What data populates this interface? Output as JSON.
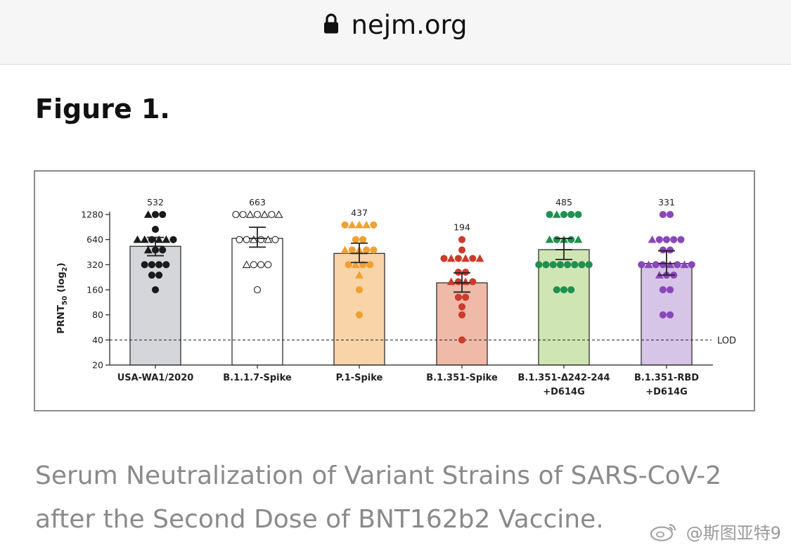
{
  "browser": {
    "url": "nejm.org",
    "lock_icon": "lock-icon"
  },
  "figure": {
    "heading": "Figure 1.",
    "caption_line1": "Serum Neutralization of Variant Strains of SARS-CoV-2",
    "caption_line2": "after the Second Dose of BNT162b2 Vaccine."
  },
  "watermark": {
    "text": "@斯图亚特9",
    "icon": "weibo-icon"
  },
  "chart_data": {
    "type": "bar",
    "ylabel_main": "PRNT",
    "ylabel_sub": "50",
    "ylabel_tail": " (log",
    "ylabel_sub2": "2",
    "ylabel_close": ")",
    "y_scale": "log2",
    "ylim": [
      20,
      1280
    ],
    "yticks": [
      20,
      40,
      80,
      160,
      320,
      640,
      1280
    ],
    "lod": {
      "value": 40,
      "label": "LOD"
    },
    "categories": [
      [
        "USA-WA1/2020"
      ],
      [
        "B.1.1.7-Spike"
      ],
      [
        "P.1-Spike"
      ],
      [
        "B.1.351-Spike"
      ],
      [
        "B.1.351-Δ242-244",
        "+D614G"
      ],
      [
        "B.1.351-RBD",
        "+D614G"
      ]
    ],
    "values": [
      532,
      663,
      437,
      194,
      485,
      331
    ],
    "value_labels": [
      "532",
      "663",
      "437",
      "194",
      "485",
      "331"
    ],
    "ci": [
      [
        410,
        680
      ],
      [
        520,
        900
      ],
      [
        340,
        580
      ],
      [
        150,
        255
      ],
      [
        370,
        660
      ],
      [
        240,
        470
      ]
    ],
    "colors": {
      "bar_fill": [
        "#d4d6da",
        "#ffffff",
        "#f8d4a8",
        "#efbaa8",
        "#cfe5b3",
        "#d6c5e6"
      ],
      "marker": [
        "#1a1a1a",
        "#1a1a1a",
        "#f0a033",
        "#cc3b2b",
        "#1f9050",
        "#8a47b8"
      ]
    },
    "points": [
      [
        {
          "v": 1280,
          "m": "tri"
        },
        {
          "v": 1280,
          "m": "dot"
        },
        {
          "v": 1280,
          "m": "dot"
        },
        {
          "v": 850,
          "m": "dot"
        },
        {
          "v": 640,
          "m": "tri"
        },
        {
          "v": 640,
          "m": "tri"
        },
        {
          "v": 640,
          "m": "dot"
        },
        {
          "v": 640,
          "m": "tri"
        },
        {
          "v": 640,
          "m": "tri"
        },
        {
          "v": 640,
          "m": "dot"
        },
        {
          "v": 480,
          "m": "tri"
        },
        {
          "v": 480,
          "m": "dot"
        },
        {
          "v": 480,
          "m": "dot"
        },
        {
          "v": 320,
          "m": "dot"
        },
        {
          "v": 320,
          "m": "dot"
        },
        {
          "v": 320,
          "m": "dot"
        },
        {
          "v": 320,
          "m": "dot"
        },
        {
          "v": 240,
          "m": "dot"
        },
        {
          "v": 240,
          "m": "dot"
        },
        {
          "v": 160,
          "m": "dot"
        }
      ],
      [
        {
          "v": 1280,
          "m": "dot"
        },
        {
          "v": 1280,
          "m": "dot"
        },
        {
          "v": 1280,
          "m": "tri"
        },
        {
          "v": 1280,
          "m": "dot"
        },
        {
          "v": 1280,
          "m": "tri"
        },
        {
          "v": 1280,
          "m": "dot"
        },
        {
          "v": 1280,
          "m": "tri"
        },
        {
          "v": 640,
          "m": "dot"
        },
        {
          "v": 640,
          "m": "dot"
        },
        {
          "v": 640,
          "m": "tri"
        },
        {
          "v": 640,
          "m": "dot"
        },
        {
          "v": 640,
          "m": "tri"
        },
        {
          "v": 640,
          "m": "dot"
        },
        {
          "v": 320,
          "m": "tri"
        },
        {
          "v": 320,
          "m": "dot"
        },
        {
          "v": 320,
          "m": "dot"
        },
        {
          "v": 320,
          "m": "dot"
        },
        {
          "v": 160,
          "m": "dot"
        }
      ],
      [
        {
          "v": 960,
          "m": "dot"
        },
        {
          "v": 960,
          "m": "tri"
        },
        {
          "v": 960,
          "m": "tri"
        },
        {
          "v": 960,
          "m": "tri"
        },
        {
          "v": 960,
          "m": "dot"
        },
        {
          "v": 640,
          "m": "dot"
        },
        {
          "v": 640,
          "m": "dot"
        },
        {
          "v": 480,
          "m": "tri"
        },
        {
          "v": 480,
          "m": "dot"
        },
        {
          "v": 480,
          "m": "tri"
        },
        {
          "v": 480,
          "m": "dot"
        },
        {
          "v": 480,
          "m": "dot"
        },
        {
          "v": 320,
          "m": "dot"
        },
        {
          "v": 320,
          "m": "tri"
        },
        {
          "v": 320,
          "m": "dot"
        },
        {
          "v": 320,
          "m": "dot"
        },
        {
          "v": 240,
          "m": "tri"
        },
        {
          "v": 160,
          "m": "dot"
        },
        {
          "v": 80,
          "m": "dot"
        }
      ],
      [
        {
          "v": 640,
          "m": "dot"
        },
        {
          "v": 480,
          "m": "dot"
        },
        {
          "v": 380,
          "m": "dot"
        },
        {
          "v": 380,
          "m": "tri"
        },
        {
          "v": 380,
          "m": "dot"
        },
        {
          "v": 380,
          "m": "tri"
        },
        {
          "v": 380,
          "m": "dot"
        },
        {
          "v": 380,
          "m": "tri"
        },
        {
          "v": 260,
          "m": "dot"
        },
        {
          "v": 260,
          "m": "dot"
        },
        {
          "v": 200,
          "m": "tri"
        },
        {
          "v": 200,
          "m": "dot"
        },
        {
          "v": 200,
          "m": "tri"
        },
        {
          "v": 200,
          "m": "dot"
        },
        {
          "v": 130,
          "m": "dot"
        },
        {
          "v": 130,
          "m": "dot"
        },
        {
          "v": 100,
          "m": "dot"
        },
        {
          "v": 80,
          "m": "dot"
        },
        {
          "v": 40,
          "m": "dot"
        }
      ],
      [
        {
          "v": 1280,
          "m": "dot"
        },
        {
          "v": 1280,
          "m": "tri"
        },
        {
          "v": 1280,
          "m": "dot"
        },
        {
          "v": 1280,
          "m": "dot"
        },
        {
          "v": 1280,
          "m": "dot"
        },
        {
          "v": 640,
          "m": "tri"
        },
        {
          "v": 640,
          "m": "dot"
        },
        {
          "v": 640,
          "m": "tri"
        },
        {
          "v": 640,
          "m": "dot"
        },
        {
          "v": 640,
          "m": "tri"
        },
        {
          "v": 320,
          "m": "dot"
        },
        {
          "v": 320,
          "m": "dot"
        },
        {
          "v": 320,
          "m": "dot"
        },
        {
          "v": 320,
          "m": "dot"
        },
        {
          "v": 320,
          "m": "dot"
        },
        {
          "v": 320,
          "m": "dot"
        },
        {
          "v": 320,
          "m": "dot"
        },
        {
          "v": 320,
          "m": "dot"
        },
        {
          "v": 160,
          "m": "dot"
        },
        {
          "v": 160,
          "m": "dot"
        },
        {
          "v": 160,
          "m": "dot"
        }
      ],
      [
        {
          "v": 1280,
          "m": "dot"
        },
        {
          "v": 1280,
          "m": "dot"
        },
        {
          "v": 640,
          "m": "tri"
        },
        {
          "v": 640,
          "m": "dot"
        },
        {
          "v": 640,
          "m": "dot"
        },
        {
          "v": 640,
          "m": "dot"
        },
        {
          "v": 640,
          "m": "dot"
        },
        {
          "v": 480,
          "m": "dot"
        },
        {
          "v": 480,
          "m": "dot"
        },
        {
          "v": 320,
          "m": "dot"
        },
        {
          "v": 320,
          "m": "tri"
        },
        {
          "v": 320,
          "m": "dot"
        },
        {
          "v": 320,
          "m": "dot"
        },
        {
          "v": 320,
          "m": "tri"
        },
        {
          "v": 320,
          "m": "dot"
        },
        {
          "v": 320,
          "m": "tri"
        },
        {
          "v": 320,
          "m": "dot"
        },
        {
          "v": 240,
          "m": "tri"
        },
        {
          "v": 240,
          "m": "dot"
        },
        {
          "v": 240,
          "m": "dot"
        },
        {
          "v": 160,
          "m": "dot"
        },
        {
          "v": 160,
          "m": "dot"
        },
        {
          "v": 80,
          "m": "dot"
        },
        {
          "v": 80,
          "m": "dot"
        }
      ]
    ],
    "grid": false
  }
}
